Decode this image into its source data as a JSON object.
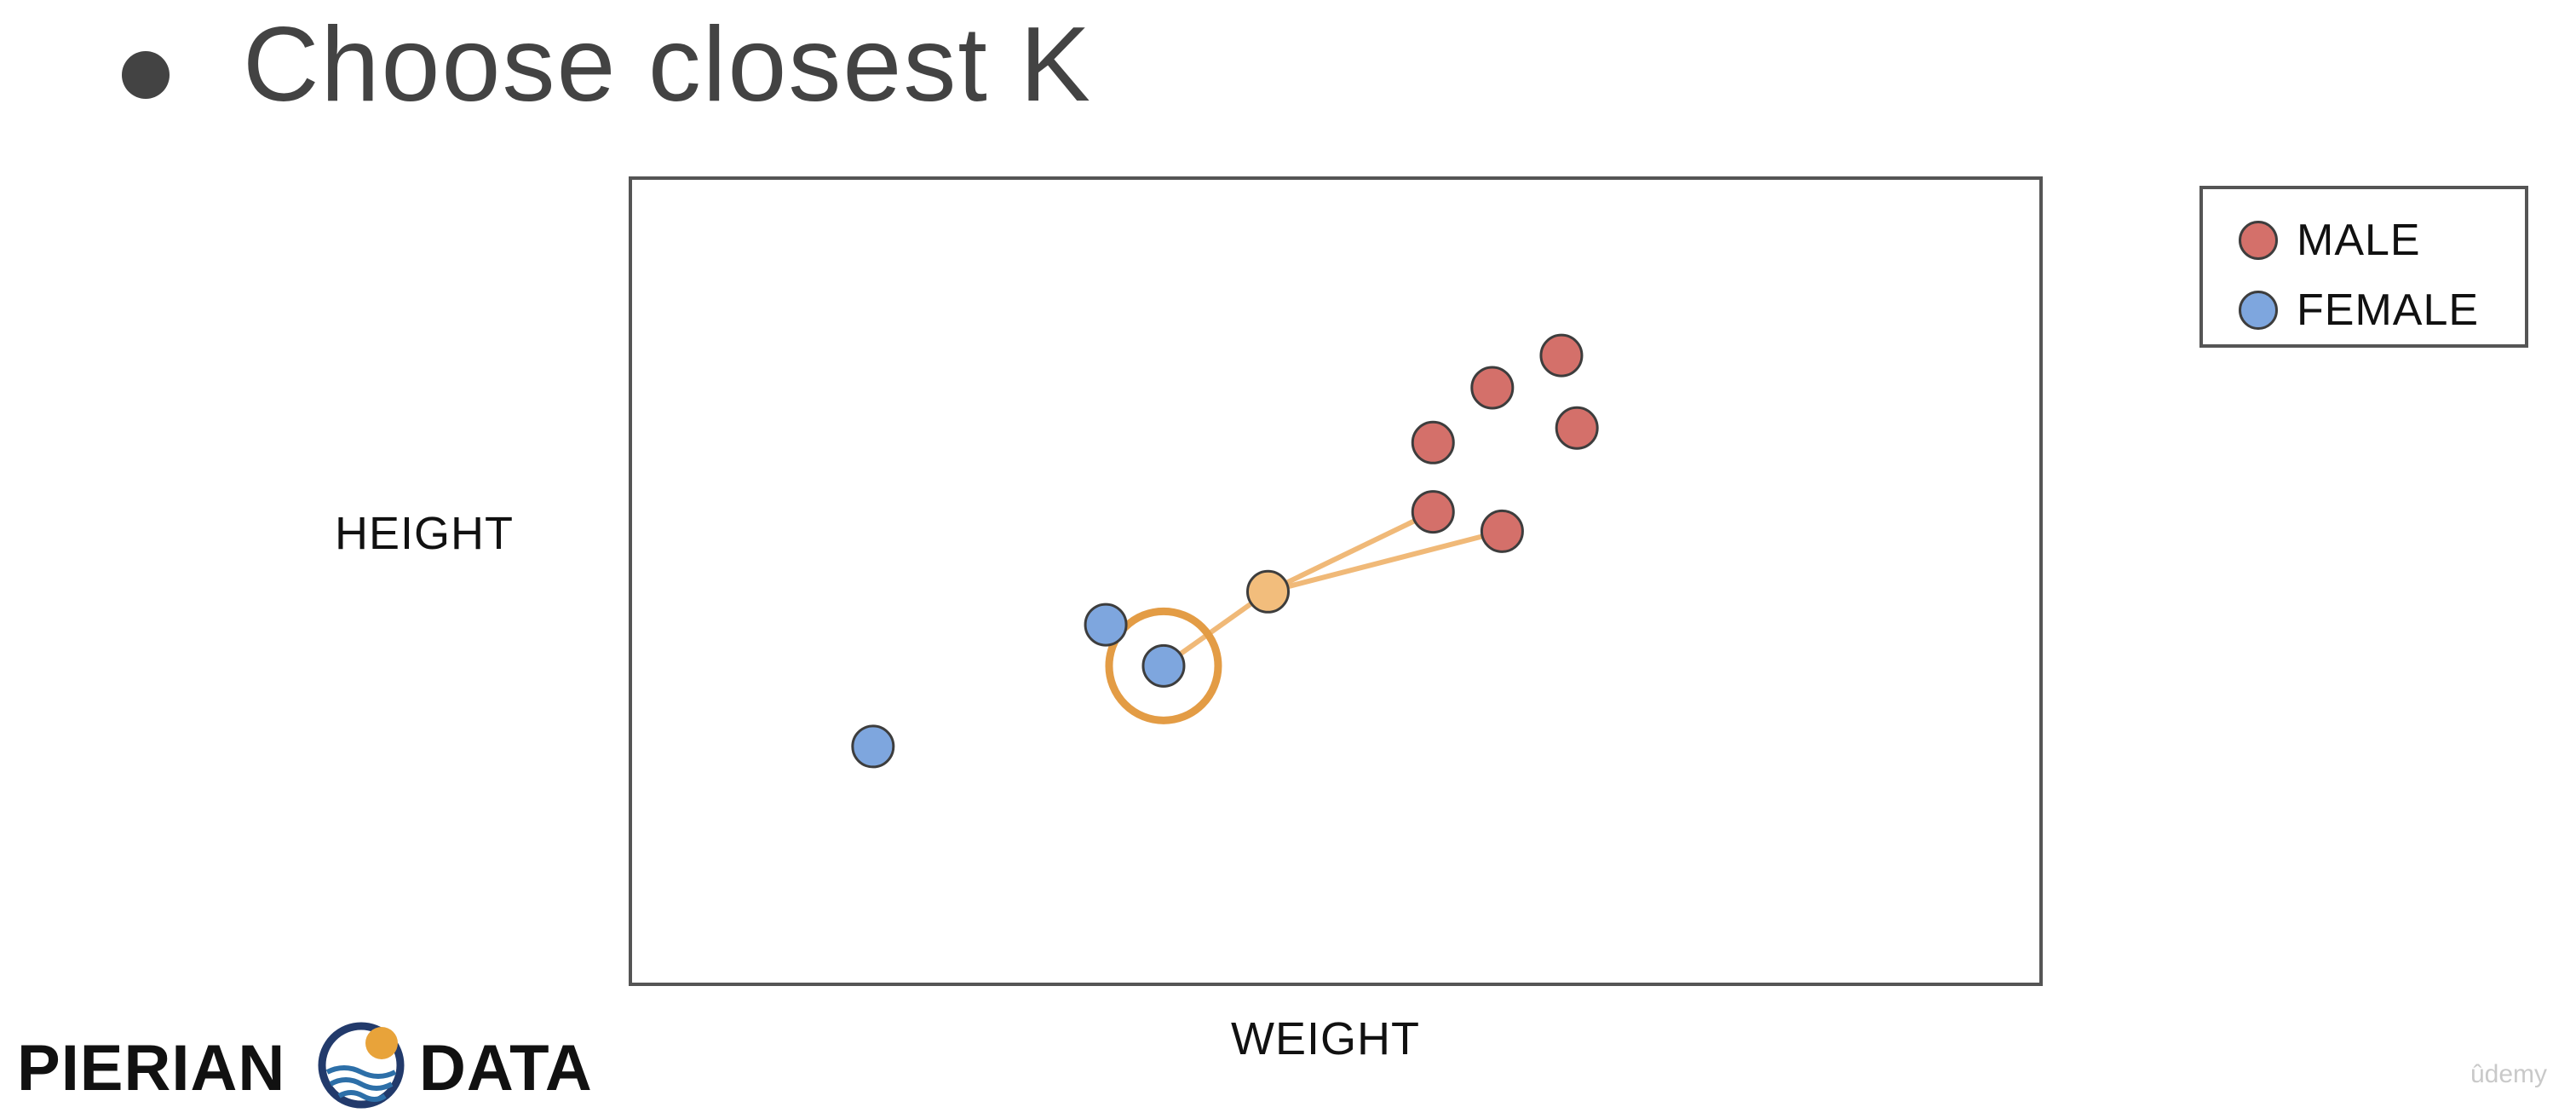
{
  "slide": {
    "bullet_text": "Choose closest K"
  },
  "chart_data": {
    "type": "scatter",
    "xlabel": "WEIGHT",
    "ylabel": "HEIGHT",
    "grid": false,
    "legend_placement": "right",
    "series": [
      {
        "name": "MALE",
        "color": "#d4706a",
        "points": [
          [
            0.66,
            0.78
          ],
          [
            0.611,
            0.74
          ],
          [
            0.569,
            0.672
          ],
          [
            0.671,
            0.69
          ],
          [
            0.569,
            0.586
          ],
          [
            0.618,
            0.562
          ]
        ]
      },
      {
        "name": "FEMALE",
        "color": "#7ea6de",
        "points": [
          [
            0.337,
            0.446
          ],
          [
            0.378,
            0.395
          ],
          [
            0.172,
            0.295
          ]
        ]
      }
    ],
    "query_point": {
      "x": 0.452,
      "y": 0.487,
      "color": "#f2bd7c"
    },
    "neighbor_links": [
      [
        0.569,
        0.586
      ],
      [
        0.618,
        0.562
      ],
      [
        0.378,
        0.395
      ]
    ],
    "highlighted_point": [
      0.378,
      0.395
    ],
    "highlight_color": "#e39c45",
    "link_color": "#f0b978"
  },
  "legend": {
    "male_label": "MALE",
    "female_label": "FEMALE"
  },
  "logo": {
    "left_word": "PIERIAN",
    "right_word": "DATA"
  },
  "watermark": "ûdemy"
}
